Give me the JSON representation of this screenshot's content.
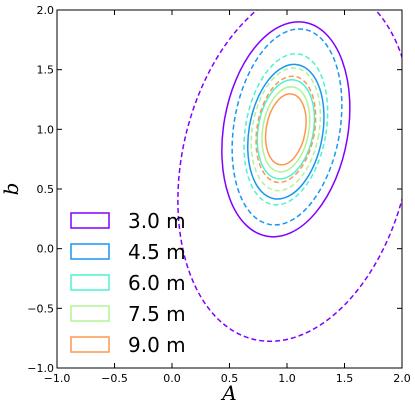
{
  "chart_data": {
    "type": "contour",
    "xlabel": "A",
    "ylabel": "b",
    "xlim": [
      -1.0,
      2.0
    ],
    "ylim": [
      -1.0,
      2.0
    ],
    "xticks": [
      "−1.0",
      "−0.5",
      "0.0",
      "0.5",
      "1.0",
      "1.5",
      "2.0"
    ],
    "yticks": [
      "−1.0",
      "−0.5",
      "0.0",
      "0.5",
      "1.0",
      "1.5",
      "2.0"
    ],
    "grid": false,
    "legend_position": "lower-left",
    "series": [
      {
        "name": "3.0 m",
        "color": "#8000ff",
        "solid": {
          "cx": 0.99,
          "cy": 1.0,
          "rx": 0.54,
          "ry": 0.91,
          "angle_deg": 10
        },
        "dashed": {
          "cx": 1.07,
          "cy": 0.72,
          "rx": 0.98,
          "ry": 1.52,
          "angle_deg": 13
        }
      },
      {
        "name": "4.5 m",
        "color": "#1996f3",
        "solid": {
          "cx": 0.99,
          "cy": 0.98,
          "rx": 0.32,
          "ry": 0.57,
          "angle_deg": 10
        },
        "dashed": {
          "cx": 1.0,
          "cy": 1.02,
          "rx": 0.46,
          "ry": 0.83,
          "angle_deg": 10
        }
      },
      {
        "name": "6.0 m",
        "color": "#4df3ce",
        "solid": {
          "cx": 0.99,
          "cy": 1.0,
          "rx": 0.24,
          "ry": 0.42,
          "angle_deg": 10
        },
        "dashed": {
          "cx": 0.99,
          "cy": 1.0,
          "rx": 0.35,
          "ry": 0.64,
          "angle_deg": 10
        }
      },
      {
        "name": "7.5 m",
        "color": "#b2f396",
        "solid": {
          "cx": 0.99,
          "cy": 1.0,
          "rx": 0.2,
          "ry": 0.36,
          "angle_deg": 10
        },
        "dashed": {
          "cx": 0.99,
          "cy": 1.0,
          "rx": 0.29,
          "ry": 0.52,
          "angle_deg": 10
        }
      },
      {
        "name": "9.0 m",
        "color": "#ff964f",
        "solid": {
          "cx": 0.99,
          "cy": 1.0,
          "rx": 0.17,
          "ry": 0.3,
          "angle_deg": 10
        },
        "dashed": {
          "cx": 0.99,
          "cy": 1.0,
          "rx": 0.25,
          "ry": 0.45,
          "angle_deg": 10
        }
      }
    ]
  }
}
